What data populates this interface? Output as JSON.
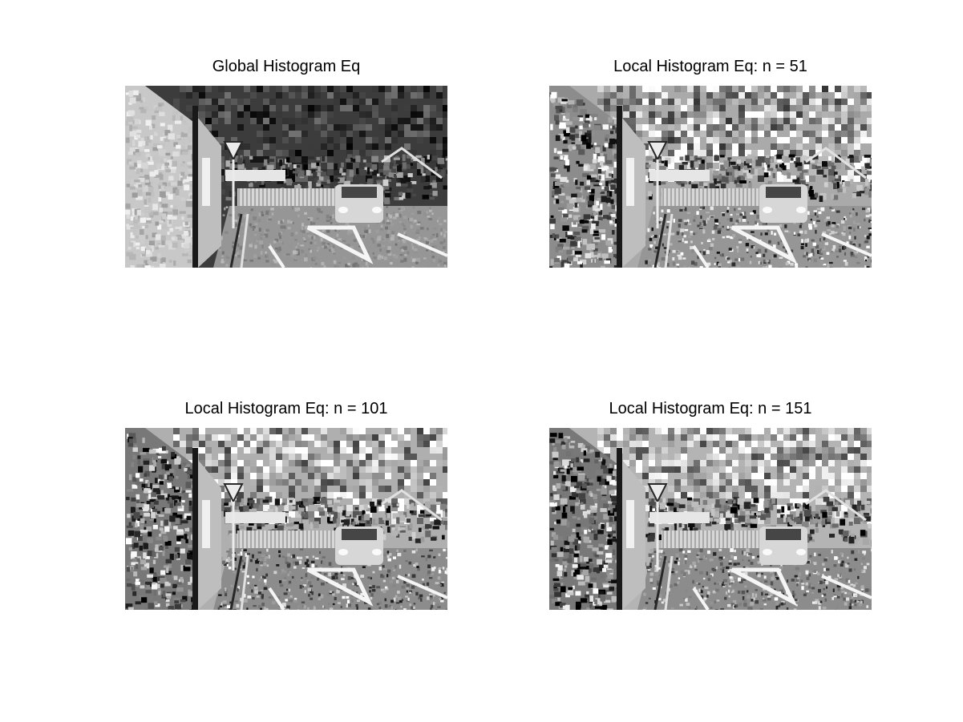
{
  "panels": [
    {
      "title": "Global Histogram Eq"
    },
    {
      "title": "Local Histogram Eq: n = 51"
    },
    {
      "title": "Local Histogram Eq: n = 101"
    },
    {
      "title": "Local Histogram Eq: n = 151"
    }
  ],
  "colors": {
    "background": "#ffffff",
    "text": "#000000"
  }
}
